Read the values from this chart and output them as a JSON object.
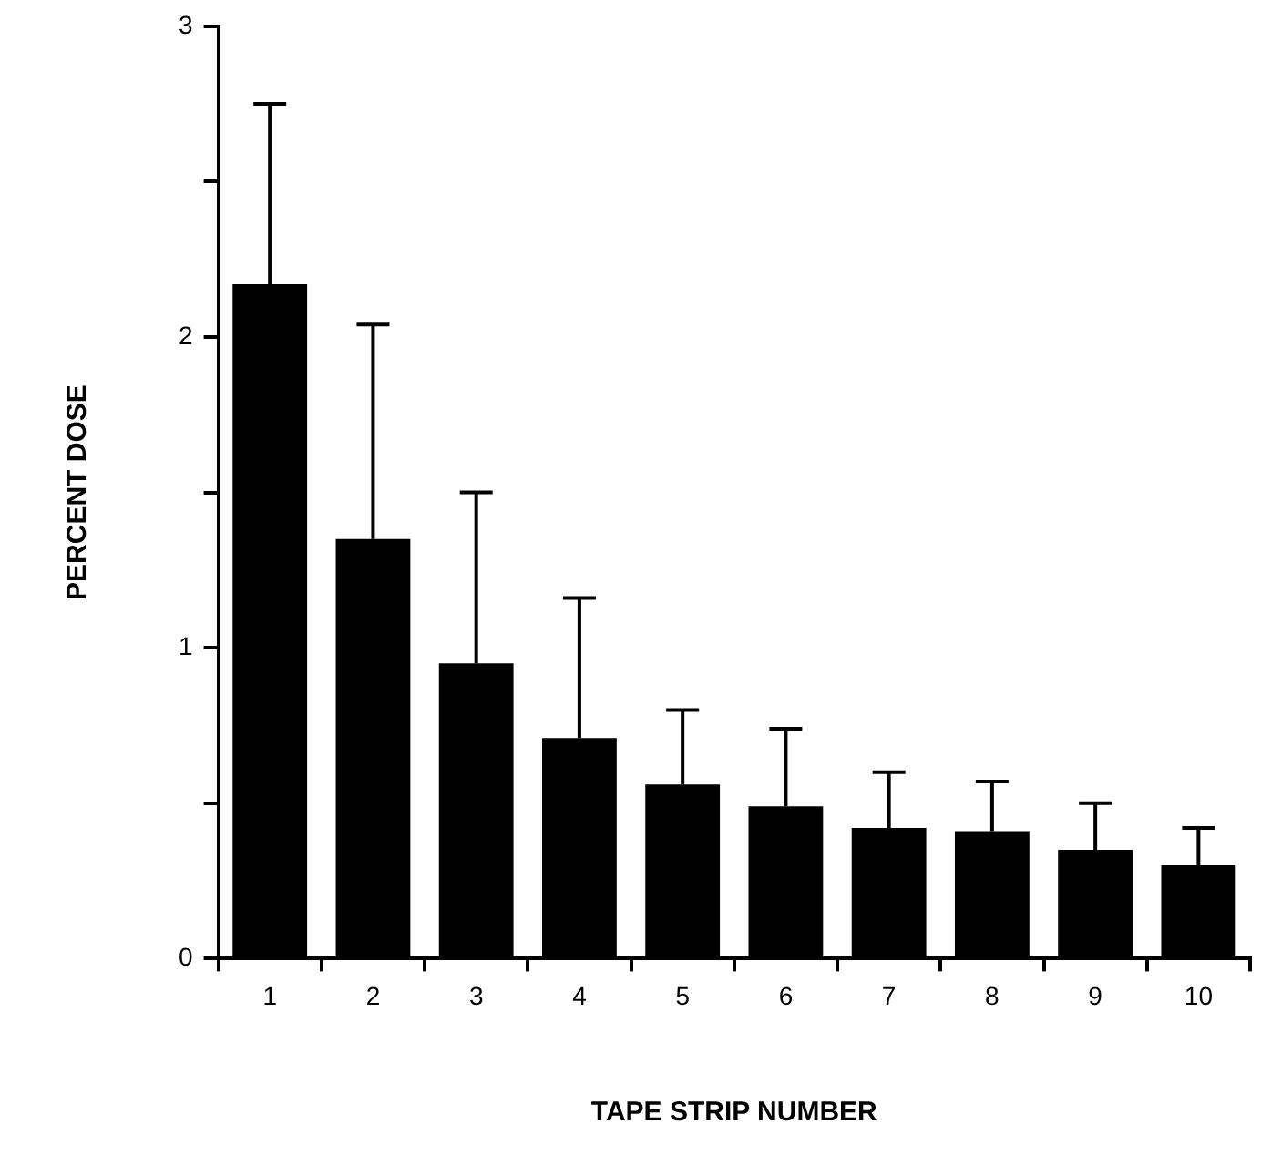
{
  "chart_data": {
    "type": "bar",
    "xlabel": "TAPE STRIP NUMBER",
    "ylabel": "PERCENT DOSE",
    "categories": [
      "1",
      "2",
      "3",
      "4",
      "5",
      "6",
      "7",
      "8",
      "9",
      "10"
    ],
    "values": [
      2.17,
      1.35,
      0.95,
      0.71,
      0.56,
      0.49,
      0.42,
      0.41,
      0.35,
      0.3
    ],
    "errors": [
      [
        2.17,
        2.75
      ],
      [
        1.35,
        2.04
      ],
      [
        0.95,
        1.5
      ],
      [
        0.71,
        1.16
      ],
      [
        0.56,
        0.8
      ],
      [
        0.49,
        0.74
      ],
      [
        0.42,
        0.6
      ],
      [
        0.41,
        0.57
      ],
      [
        0.35,
        0.5
      ],
      [
        0.3,
        0.42
      ]
    ],
    "color": "#000000",
    "ylim": [
      0,
      3
    ],
    "yticks": [
      0,
      {
        "value": 0.5,
        "label": null
      },
      1,
      {
        "value": 1.5,
        "label": null
      },
      2,
      {
        "value": 2.5,
        "label": null
      },
      3
    ],
    "grid": false,
    "legend": false
  }
}
